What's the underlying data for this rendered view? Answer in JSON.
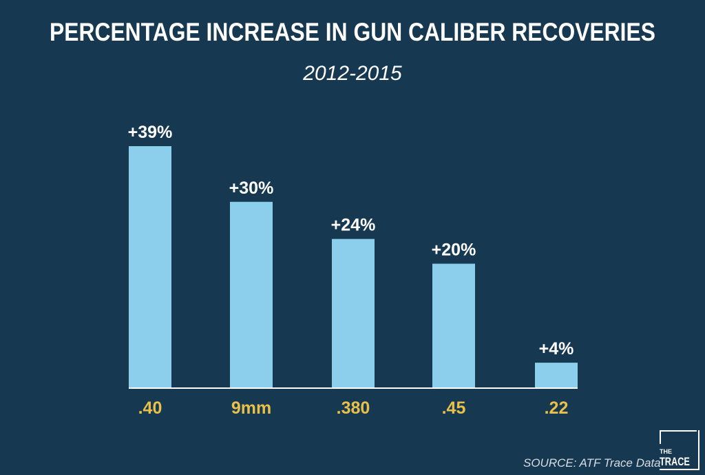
{
  "chart_data": {
    "type": "bar",
    "title": "PERCENTAGE INCREASE IN GUN CALIBER RECOVERIES",
    "subtitle": "2012-2015",
    "categories": [
      ".40",
      "9mm",
      ".380",
      ".45",
      ".22"
    ],
    "values": [
      39,
      30,
      24,
      20,
      4
    ],
    "data_labels": [
      "+39%",
      "+30%",
      "+24%",
      "+20%",
      "+4%"
    ],
    "xlabel": "",
    "ylabel": "",
    "ylim": [
      0,
      39
    ],
    "grid": false,
    "colors": {
      "background": "#173851",
      "bar": "#8ccfec",
      "category_label": "#e8c04a",
      "text": "#ffffff"
    }
  },
  "source": "SOURCE: ATF Trace Data",
  "logo": {
    "line1": "THE",
    "line2": "TRACE"
  }
}
